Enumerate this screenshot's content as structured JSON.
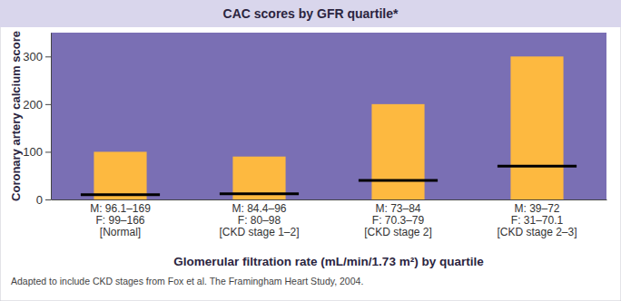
{
  "chart_data": {
    "type": "bar",
    "title": "CAC scores by GFR quartile*",
    "x_label": "Glomerular filtration rate (mL/min/1.73 m²) by quartile",
    "y_label": "Coronary artery calcium score",
    "footnote": "Adapted to include CKD stages from Fox et al.  The Framingham Heart Study, 2004.",
    "categories": [
      "M: 96.1–169\nF: 99–166\n[Normal]",
      "M: 84.4–96\nF: 80–98\n[CKD stage 1–2]",
      "M: 73–84\nF: 70.3–79\n[CKD stage 2]",
      "M: 39–72\nF: 31–70.1\n[CKD stage 2–3]"
    ],
    "series": [
      {
        "type": "bar",
        "color": "#fdb940",
        "values": [
          100,
          90,
          200,
          300
        ]
      },
      {
        "type": "scatter",
        "marker": "hline",
        "color": "#000000",
        "values": [
          10,
          12,
          40,
          70
        ]
      }
    ],
    "ylim": [
      0,
      350
    ],
    "yticks": [
      0,
      100,
      200,
      300
    ],
    "grid": false,
    "data_labels": false
  }
}
